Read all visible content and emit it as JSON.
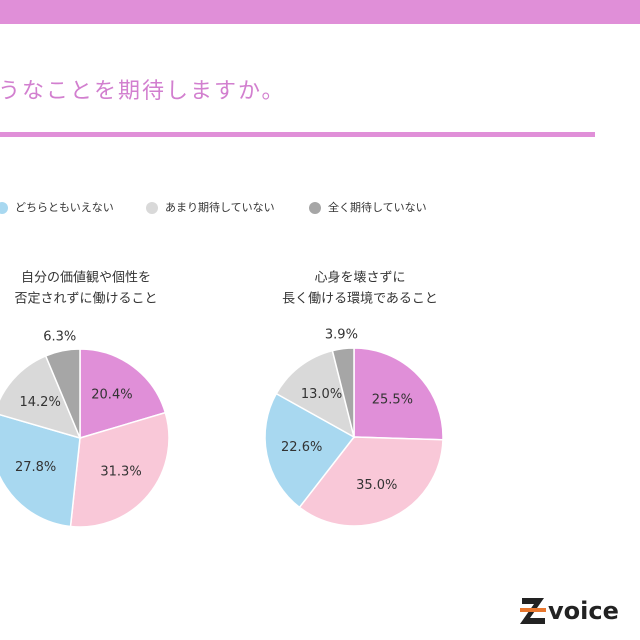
{
  "header": {
    "title": "うなことを期待しますか。"
  },
  "legend": [
    {
      "name": "どちらともいえない",
      "color": "#a8d8f0"
    },
    {
      "name": "あまり期待していない",
      "color": "#d9d9d9"
    },
    {
      "name": "全く期待していない",
      "color": "#a6a6a6"
    }
  ],
  "chart_data": [
    {
      "type": "pie",
      "title": [
        "自分の価値観や個性を",
        "否定されずに働けること"
      ],
      "values": [
        20.4,
        31.3,
        27.8,
        14.2,
        6.3
      ],
      "value_labels": [
        "20.4%",
        "31.3%",
        "27.8%",
        "14.2%",
        "6.3%"
      ],
      "colors": [
        "#e08fd8",
        "#f9c8d8",
        "#a8d8f0",
        "#d9d9d9",
        "#a6a6a6"
      ]
    },
    {
      "type": "pie",
      "title": [
        "心身を壊さずに",
        "長く働ける環境であること"
      ],
      "values": [
        25.5,
        35.0,
        22.6,
        13.0,
        3.9
      ],
      "value_labels": [
        "25.5%",
        "35.0%",
        "22.6%",
        "13.0%",
        "3.9%"
      ],
      "colors": [
        "#e08fd8",
        "#f9c8d8",
        "#a8d8f0",
        "#d9d9d9",
        "#a6a6a6"
      ]
    }
  ],
  "logo": {
    "text": "voice"
  }
}
